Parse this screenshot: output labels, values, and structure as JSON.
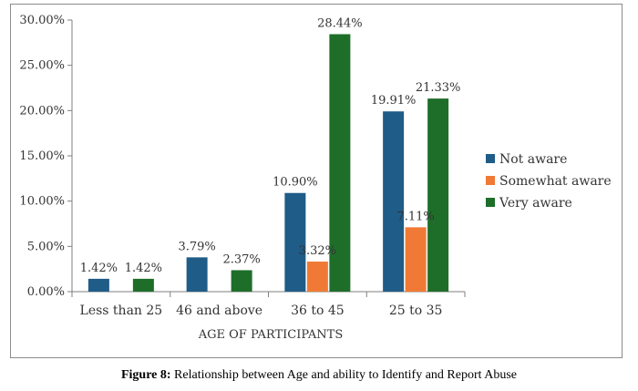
{
  "chart_data": {
    "type": "bar",
    "categories": [
      "Less than 25",
      "46 and above",
      "36 to 45",
      "25 to 35"
    ],
    "series": [
      {
        "name": "Not aware",
        "color": "#1f5c87",
        "values": [
          1.42,
          3.79,
          10.9,
          19.91
        ],
        "labels": [
          "1.42%",
          "3.79%",
          "10.90%",
          "19.91%"
        ]
      },
      {
        "name": "Somewhat aware",
        "color": "#f07a35",
        "values": [
          0,
          0,
          3.32,
          7.11
        ],
        "labels": [
          "",
          "",
          "3.32%",
          "7.11%"
        ]
      },
      {
        "name": "Very aware",
        "color": "#1e6e2a",
        "values": [
          1.42,
          2.37,
          28.44,
          21.33
        ],
        "labels": [
          "1.42%",
          "2.37%",
          "28.44%",
          "21.33%"
        ]
      }
    ],
    "yticks": [
      "0.00%",
      "5.00%",
      "10.00%",
      "15.00%",
      "20.00%",
      "25.00%",
      "30.00%"
    ],
    "ylim": [
      0,
      30
    ],
    "xlabel": "AGE OF PARTICIPANTS",
    "ylabel": "",
    "legend_position": "right",
    "grid": false
  },
  "caption": {
    "label": "Figure 8:",
    "text": " Relationship between Age and ability to Identify and Report Abuse"
  }
}
